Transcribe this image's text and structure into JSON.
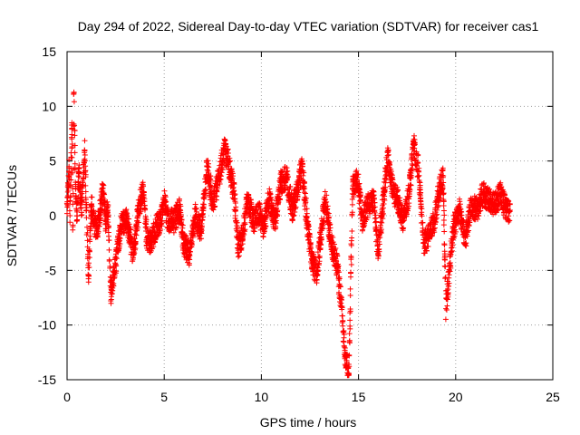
{
  "chart_data": {
    "type": "scatter",
    "title": "Day 294 of 2022, Sidereal Day-to-day VTEC variation (SDTVAR) for receiver cas1",
    "xlabel": "GPS time / hours",
    "ylabel": "SDTVAR / TECUs",
    "xlim": [
      0,
      25
    ],
    "ylim": [
      -15,
      15
    ],
    "x_ticks": [
      0,
      5,
      10,
      15,
      20,
      25
    ],
    "y_ticks": [
      -15,
      -10,
      -5,
      0,
      5,
      10,
      15
    ],
    "grid": true,
    "marker": "+",
    "series": [
      {
        "name": "SDTVAR",
        "color": "#ff0000",
        "x_range": [
          0,
          22.8
        ],
        "shape_points": [
          [
            0.0,
            0.2
          ],
          [
            0.1,
            4.5
          ],
          [
            0.15,
            0.0
          ],
          [
            0.25,
            8.0
          ],
          [
            0.3,
            -1.0
          ],
          [
            0.35,
            11.2
          ],
          [
            0.45,
            1.5
          ],
          [
            0.5,
            -0.5
          ],
          [
            0.6,
            4.0
          ],
          [
            0.75,
            0.3
          ],
          [
            0.9,
            6.0
          ],
          [
            1.0,
            0.5
          ],
          [
            1.1,
            -5.5
          ],
          [
            1.25,
            1.0
          ],
          [
            1.4,
            -0.5
          ],
          [
            1.55,
            -1.2
          ],
          [
            1.7,
            0.5
          ],
          [
            1.85,
            2.5
          ],
          [
            2.0,
            -0.5
          ],
          [
            2.1,
            0.5
          ],
          [
            2.25,
            -7.0
          ],
          [
            2.45,
            -5.0
          ],
          [
            2.65,
            -2.5
          ],
          [
            2.85,
            -0.5
          ],
          [
            3.05,
            -0.5
          ],
          [
            3.2,
            -1.5
          ],
          [
            3.4,
            -3.5
          ],
          [
            3.6,
            -0.5
          ],
          [
            3.8,
            1.5
          ],
          [
            3.95,
            2.2
          ],
          [
            4.1,
            -2.0
          ],
          [
            4.3,
            -2.5
          ],
          [
            4.6,
            -1.0
          ],
          [
            4.8,
            -0.5
          ],
          [
            5.0,
            1.5
          ],
          [
            5.2,
            -0.5
          ],
          [
            5.5,
            -0.5
          ],
          [
            5.8,
            0.5
          ],
          [
            6.0,
            -2.5
          ],
          [
            6.3,
            -3.5
          ],
          [
            6.6,
            0.0
          ],
          [
            6.9,
            -1.5
          ],
          [
            7.2,
            4.5
          ],
          [
            7.5,
            1.0
          ],
          [
            7.8,
            3.5
          ],
          [
            8.1,
            6.0
          ],
          [
            8.3,
            5.0
          ],
          [
            8.6,
            2.0
          ],
          [
            8.8,
            -3.0
          ],
          [
            9.0,
            -2.0
          ],
          [
            9.3,
            1.5
          ],
          [
            9.6,
            -0.5
          ],
          [
            9.9,
            0.2
          ],
          [
            10.1,
            -1.0
          ],
          [
            10.4,
            1.5
          ],
          [
            10.7,
            -0.5
          ],
          [
            11.0,
            3.0
          ],
          [
            11.3,
            3.5
          ],
          [
            11.6,
            0.5
          ],
          [
            11.8,
            2.0
          ],
          [
            12.1,
            4.5
          ],
          [
            12.35,
            -0.5
          ],
          [
            12.6,
            -4.0
          ],
          [
            12.85,
            -5.5
          ],
          [
            13.1,
            -1.0
          ],
          [
            13.3,
            1.5
          ],
          [
            13.6,
            -2.5
          ],
          [
            13.9,
            -4.5
          ],
          [
            14.1,
            -8.0
          ],
          [
            14.3,
            -12.5
          ],
          [
            14.5,
            -14.5
          ],
          [
            14.7,
            2.5
          ],
          [
            14.95,
            3.5
          ],
          [
            15.2,
            -0.5
          ],
          [
            15.5,
            1.0
          ],
          [
            15.8,
            1.5
          ],
          [
            16.0,
            -3.5
          ],
          [
            16.2,
            0.0
          ],
          [
            16.5,
            5.5
          ],
          [
            16.8,
            2.0
          ],
          [
            17.0,
            1.5
          ],
          [
            17.3,
            -0.5
          ],
          [
            17.6,
            2.0
          ],
          [
            17.85,
            6.5
          ],
          [
            18.1,
            4.0
          ],
          [
            18.35,
            -2.5
          ],
          [
            18.6,
            -2.0
          ],
          [
            18.9,
            -0.5
          ],
          [
            19.1,
            2.0
          ],
          [
            19.35,
            3.5
          ],
          [
            19.5,
            -8.5
          ],
          [
            19.7,
            -4.5
          ],
          [
            19.9,
            -1.0
          ],
          [
            20.2,
            0.5
          ],
          [
            20.5,
            -2.0
          ],
          [
            20.8,
            1.0
          ],
          [
            21.1,
            0.5
          ],
          [
            21.4,
            2.0
          ],
          [
            21.7,
            1.5
          ],
          [
            22.0,
            1.0
          ],
          [
            22.3,
            2.0
          ],
          [
            22.6,
            0.5
          ],
          [
            22.8,
            0.5
          ]
        ]
      }
    ]
  }
}
